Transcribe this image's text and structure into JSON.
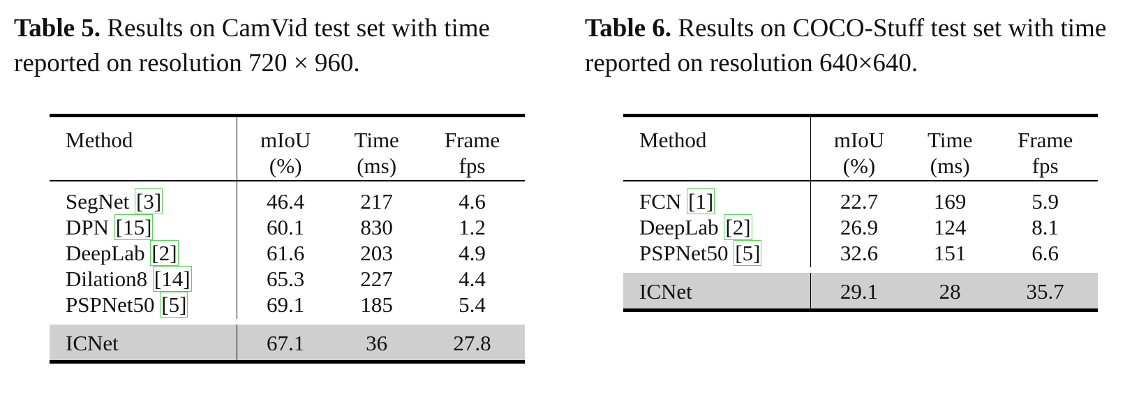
{
  "table5": {
    "caption_label": "Table 5.",
    "caption_text": " Results on CamVid test set with time reported on resolution 720 × 960.",
    "headers": [
      {
        "l1": "Method",
        "l2": ""
      },
      {
        "l1": "mIoU",
        "l2": "(%)"
      },
      {
        "l1": "Time",
        "l2": "(ms)"
      },
      {
        "l1": "Frame",
        "l2": "fps"
      }
    ],
    "rows": [
      {
        "method": "SegNet",
        "ref": "3",
        "miou": "46.4",
        "time": "217",
        "fps": "4.6"
      },
      {
        "method": "DPN",
        "ref": "15",
        "miou": "60.1",
        "time": "830",
        "fps": "1.2"
      },
      {
        "method": "DeepLab",
        "ref": "2",
        "miou": "61.6",
        "time": "203",
        "fps": "4.9"
      },
      {
        "method": "Dilation8",
        "ref": "14",
        "miou": "65.3",
        "time": "227",
        "fps": "4.4"
      },
      {
        "method": "PSPNet50",
        "ref": "5",
        "miou": "69.1",
        "time": "185",
        "fps": "5.4"
      }
    ],
    "highlight": {
      "method": "ICNet",
      "miou": "67.1",
      "time": "36",
      "fps": "27.8"
    }
  },
  "table6": {
    "caption_label": "Table 6.",
    "caption_text": " Results on COCO-Stuff test set with time reported on resolution 640×640.",
    "headers": [
      {
        "l1": "Method",
        "l2": ""
      },
      {
        "l1": "mIoU",
        "l2": "(%)"
      },
      {
        "l1": "Time",
        "l2": "(ms)"
      },
      {
        "l1": "Frame",
        "l2": "fps"
      }
    ],
    "rows": [
      {
        "method": "FCN",
        "ref": "1",
        "miou": "22.7",
        "time": "169",
        "fps": "5.9"
      },
      {
        "method": "DeepLab",
        "ref": "2",
        "miou": "26.9",
        "time": "124",
        "fps": "8.1"
      },
      {
        "method": "PSPNet50",
        "ref": "5",
        "miou": "32.6",
        "time": "151",
        "fps": "6.6"
      }
    ],
    "highlight": {
      "method": "ICNet",
      "miou": "29.1",
      "time": "28",
      "fps": "35.7"
    }
  },
  "colors": {
    "highlight_row": "#cfcfcf",
    "citation_box": "#5cd05c"
  }
}
